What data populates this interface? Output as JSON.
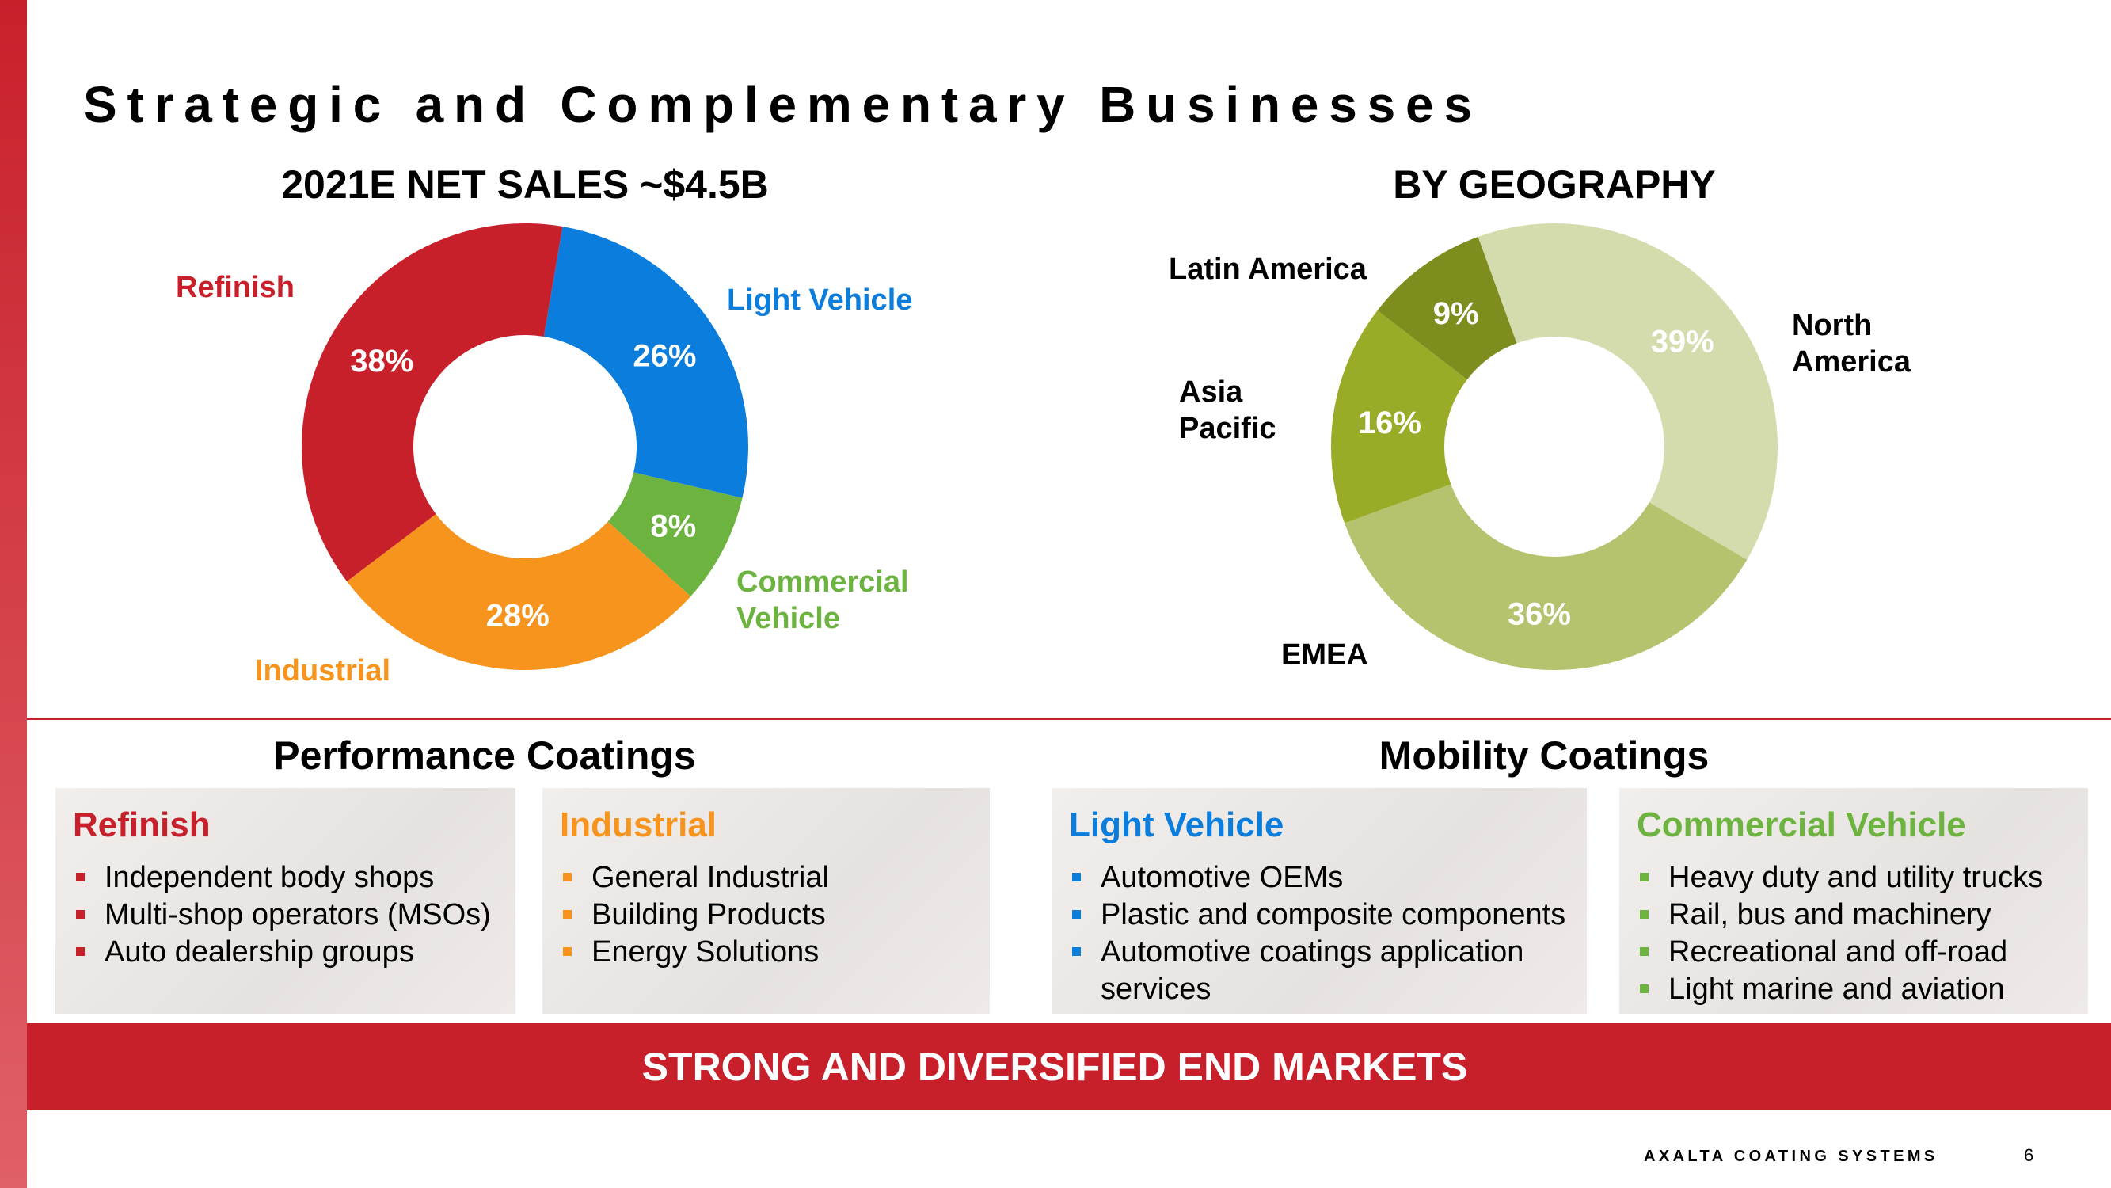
{
  "title": "Strategic and Complementary Businesses",
  "chart_data": [
    {
      "type": "donut",
      "title": "2021E NET SALES ~$4.5B",
      "categories": [
        "Light Vehicle",
        "Commercial Vehicle",
        "Industrial",
        "Refinish"
      ],
      "values": [
        26,
        8,
        28,
        38
      ],
      "value_labels": [
        "26%",
        "8%",
        "28%",
        "38%"
      ],
      "colors": [
        "#0b7ddd",
        "#6db33f",
        "#f7941e",
        "#c8202b"
      ]
    },
    {
      "type": "donut",
      "title": "BY GEOGRAPHY",
      "categories": [
        "North America",
        "EMEA",
        "Asia Pacific",
        "Latin America"
      ],
      "values": [
        39,
        36,
        16,
        9
      ],
      "value_labels": [
        "39%",
        "36%",
        "16%",
        "9%"
      ],
      "colors": [
        "#d4dbad",
        "#b5c36e",
        "#9aab28",
        "#7f8c1e"
      ]
    }
  ],
  "sections": [
    {
      "title": "Performance Coatings",
      "boxes": [
        {
          "title": "Refinish",
          "color": "#c8202b",
          "items": [
            "Independent body shops",
            "Multi-shop operators (MSOs)",
            "Auto dealership groups"
          ]
        },
        {
          "title": "Industrial",
          "color": "#f7941e",
          "items": [
            "General Industrial",
            "Building Products",
            "Energy Solutions"
          ]
        }
      ]
    },
    {
      "title": "Mobility Coatings",
      "boxes": [
        {
          "title": "Light Vehicle",
          "color": "#0b7ddd",
          "items": [
            "Automotive OEMs",
            "Plastic and composite components",
            "Automotive coatings application services"
          ]
        },
        {
          "title": "Commercial Vehicle",
          "color": "#6db33f",
          "items": [
            "Heavy duty and utility trucks",
            "Rail, bus and machinery",
            "Recreational and off-road",
            "Light marine and aviation"
          ]
        }
      ]
    }
  ],
  "banner": "STRONG AND DIVERSIFIED END MARKETS",
  "footer": {
    "brand": "AXALTA COATING SYSTEMS",
    "page": "6"
  }
}
